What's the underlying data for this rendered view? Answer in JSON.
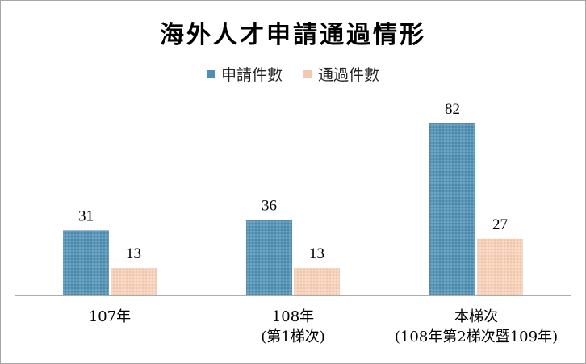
{
  "chart_data": {
    "type": "bar",
    "title": "海外人才申請通過情形",
    "categories": [
      [
        "107年"
      ],
      [
        "108年",
        "(第1梯次)"
      ],
      [
        "本梯次",
        "(108年第2梯次暨109年)"
      ]
    ],
    "series": [
      {
        "name": "申請件數",
        "values": [
          31,
          36,
          82
        ],
        "color": "#4f8eb0"
      },
      {
        "name": "通過件數",
        "values": [
          13,
          13,
          27
        ],
        "color": "#f2c9ae"
      }
    ],
    "ylim": [
      0,
      100
    ],
    "grid": false,
    "legend": "top"
  }
}
